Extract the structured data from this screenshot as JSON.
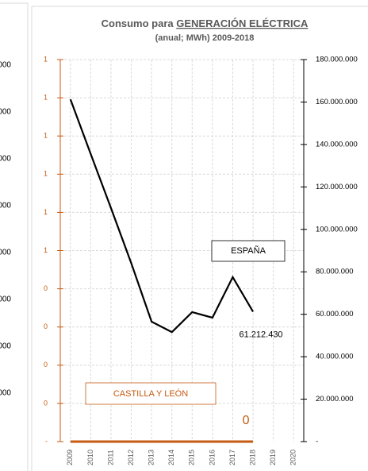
{
  "left_panel": {
    "labels": [
      "000",
      "000",
      "000",
      "000",
      "000",
      "000",
      "000",
      "000"
    ]
  },
  "chart_data": {
    "type": "line",
    "title": "Consumo para",
    "title_emphasis": "GENERACIÓN ELÉCTRICA",
    "subtitle": "(anual; MWh) 2009-2018",
    "categories": [
      "2009",
      "2010",
      "2011",
      "2012",
      "2013",
      "2014",
      "2015",
      "2016",
      "2017",
      "2018",
      "2019",
      "2020"
    ],
    "series": [
      {
        "name": "ESPAÑA",
        "color": "#000000",
        "axis": "y2",
        "values": [
          161300000,
          135500000,
          110000000,
          84000000,
          56500000,
          51600000,
          61000000,
          58400000,
          77500000,
          61212430,
          null,
          null
        ],
        "value_labels": [
          null,
          null,
          null,
          null,
          null,
          null,
          null,
          null,
          null,
          "61.212.430",
          null,
          null
        ]
      },
      {
        "name": "CASTILLA Y LEÓN",
        "color": "#c55a11",
        "axis": "y",
        "values": [
          0,
          0,
          0,
          0,
          0,
          0,
          0,
          0,
          0,
          0,
          null,
          null
        ]
      }
    ],
    "ylim": [
      0,
      1
    ],
    "yticks": [
      {
        "value": 0,
        "label": "-"
      },
      {
        "value": 0.1,
        "label": "0"
      },
      {
        "value": 0.2,
        "label": "0"
      },
      {
        "value": 0.3,
        "label": "0"
      },
      {
        "value": 0.4,
        "label": "0"
      },
      {
        "value": 0.5,
        "label": "1"
      },
      {
        "value": 0.6,
        "label": "1"
      },
      {
        "value": 0.7,
        "label": "1"
      },
      {
        "value": 0.8,
        "label": "1"
      },
      {
        "value": 0.9,
        "label": "1"
      },
      {
        "value": 1,
        "label": "1"
      }
    ],
    "y2lim": [
      0,
      180000000
    ],
    "y2ticks": [
      {
        "value": 0,
        "label": "-"
      },
      {
        "value": 20000000,
        "label": "20.000.000"
      },
      {
        "value": 40000000,
        "label": "40.000.000"
      },
      {
        "value": 60000000,
        "label": "60.000.000"
      },
      {
        "value": 80000000,
        "label": "80.000.000"
      },
      {
        "value": 100000000,
        "label": "100.000.000"
      },
      {
        "value": 120000000,
        "label": "120.000.000"
      },
      {
        "value": 140000000,
        "label": "140.000.000"
      },
      {
        "value": 160000000,
        "label": "160.000.000"
      },
      {
        "value": 180000000,
        "label": "180.000.000"
      }
    ],
    "grid": true
  }
}
